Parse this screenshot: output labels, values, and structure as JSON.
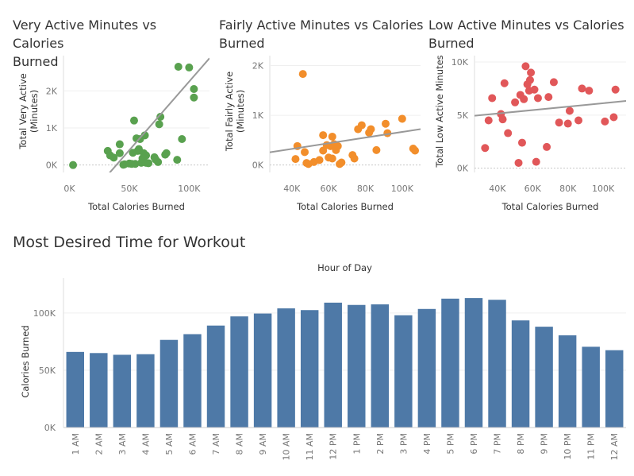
{
  "titles": {
    "very_active": [
      "Very Active Minutes vs Calories",
      "Burned"
    ],
    "fairly_active": [
      "Fairly Active Minutes vs Calories",
      "Burned"
    ],
    "low_active": [
      "Low Active Minutes vs Calories",
      "Burned"
    ],
    "workout": "Most Desired Time for Workout"
  },
  "colors": {
    "very_active": "#59a14f",
    "fairly_active": "#f28e2b",
    "low_active": "#e15759",
    "bars": "#4e79a7",
    "trend": "#999999"
  },
  "chart_data": [
    {
      "type": "scatter",
      "title": "Very Active Minutes vs Calories Burned",
      "xlabel": "Total Calories Burned",
      "ylabel": "Total Very Active (Minutes)",
      "xticks": [
        "0K",
        "50K",
        "100K"
      ],
      "yticks": [
        "0K",
        "1K",
        "2K"
      ],
      "xlim": [
        -5000,
        117000
      ],
      "ylim": [
        -200,
        2950
      ],
      "trend_line": {
        "slope": 0.037,
        "intercept": -1450
      },
      "points": [
        [
          3000,
          0
        ],
        [
          32000,
          380
        ],
        [
          34000,
          260
        ],
        [
          37000,
          200
        ],
        [
          42000,
          560
        ],
        [
          42000,
          320
        ],
        [
          45000,
          10
        ],
        [
          46000,
          20
        ],
        [
          50000,
          40
        ],
        [
          52000,
          30
        ],
        [
          53000,
          330
        ],
        [
          54000,
          1200
        ],
        [
          55000,
          30
        ],
        [
          56000,
          720
        ],
        [
          57000,
          380
        ],
        [
          58000,
          430
        ],
        [
          59000,
          700
        ],
        [
          60000,
          60
        ],
        [
          61000,
          180
        ],
        [
          62000,
          320
        ],
        [
          63000,
          800
        ],
        [
          64000,
          260
        ],
        [
          64000,
          60
        ],
        [
          66000,
          50
        ],
        [
          71000,
          210
        ],
        [
          72000,
          150
        ],
        [
          74000,
          80
        ],
        [
          75000,
          1100
        ],
        [
          76000,
          1300
        ],
        [
          80000,
          280
        ],
        [
          81000,
          320
        ],
        [
          90000,
          140
        ],
        [
          91000,
          2650
        ],
        [
          94000,
          700
        ],
        [
          100000,
          2630
        ],
        [
          104000,
          2050
        ],
        [
          104000,
          1820
        ]
      ]
    },
    {
      "type": "scatter",
      "title": "Fairly Active Minutes vs Calories Burned",
      "xlabel": "Total Calories Burned",
      "ylabel": "Total Fairly Active (Minutes)",
      "xticks": [
        "40K",
        "60K",
        "80K",
        "100K"
      ],
      "yticks": [
        "0K",
        "1K",
        "2K"
      ],
      "xlim": [
        28000,
        110000
      ],
      "ylim": [
        -150,
        2200
      ],
      "trend_line": {
        "slope": 0.0057,
        "intercept": 95
      },
      "points": [
        [
          42000,
          120
        ],
        [
          43000,
          380
        ],
        [
          46000,
          1830
        ],
        [
          47000,
          260
        ],
        [
          48000,
          40
        ],
        [
          49000,
          20
        ],
        [
          52000,
          60
        ],
        [
          55000,
          100
        ],
        [
          57000,
          290
        ],
        [
          57000,
          600
        ],
        [
          59000,
          400
        ],
        [
          60000,
          150
        ],
        [
          61000,
          380
        ],
        [
          62000,
          570
        ],
        [
          62000,
          130
        ],
        [
          63000,
          420
        ],
        [
          64000,
          300
        ],
        [
          65000,
          380
        ],
        [
          66000,
          20
        ],
        [
          67000,
          50
        ],
        [
          73000,
          200
        ],
        [
          74000,
          130
        ],
        [
          76000,
          720
        ],
        [
          78000,
          800
        ],
        [
          82000,
          650
        ],
        [
          83000,
          720
        ],
        [
          86000,
          300
        ],
        [
          91000,
          830
        ],
        [
          92000,
          640
        ],
        [
          100000,
          930
        ],
        [
          106000,
          330
        ],
        [
          107000,
          290
        ]
      ]
    },
    {
      "type": "scatter",
      "title": "Low Active Minutes vs Calories Burned",
      "xlabel": "Total Calories Burned",
      "ylabel": "Total Low Active Minutes",
      "xticks": [
        "40K",
        "60K",
        "80K",
        "100K"
      ],
      "yticks": [
        "0K",
        "5K",
        "10K"
      ],
      "xlim": [
        27000,
        113000
      ],
      "ylim": [
        -400,
        10600
      ],
      "trend_line": {
        "slope": 0.0162,
        "intercept": 4500
      },
      "points": [
        [
          33000,
          1900
        ],
        [
          35000,
          4500
        ],
        [
          37000,
          6600
        ],
        [
          42000,
          5100
        ],
        [
          43000,
          4600
        ],
        [
          44000,
          8000
        ],
        [
          46000,
          3300
        ],
        [
          50000,
          6200
        ],
        [
          52000,
          500
        ],
        [
          53000,
          6900
        ],
        [
          54000,
          2400
        ],
        [
          55000,
          6500
        ],
        [
          56000,
          9600
        ],
        [
          57000,
          7900
        ],
        [
          58000,
          7300
        ],
        [
          58500,
          8300
        ],
        [
          59000,
          9000
        ],
        [
          61000,
          7400
        ],
        [
          62000,
          600
        ],
        [
          63000,
          6600
        ],
        [
          68000,
          2000
        ],
        [
          69000,
          6700
        ],
        [
          72000,
          8100
        ],
        [
          75000,
          4300
        ],
        [
          80000,
          4200
        ],
        [
          81000,
          5400
        ],
        [
          86000,
          4500
        ],
        [
          88000,
          7500
        ],
        [
          92000,
          7300
        ],
        [
          101000,
          4400
        ],
        [
          106000,
          4800
        ],
        [
          107000,
          7400
        ]
      ]
    },
    {
      "type": "bar",
      "title": "Most Desired Time for Workout",
      "xlabel": "Hour of Day",
      "ylabel": "Calories Burned",
      "ylim": [
        0,
        120000
      ],
      "yticks": [
        "0K",
        "50K",
        "100K"
      ],
      "categories": [
        "1 AM",
        "2 AM",
        "3 AM",
        "4 AM",
        "5 AM",
        "6 AM",
        "7 AM",
        "8 AM",
        "9 AM",
        "10 AM",
        "11 AM",
        "12 PM",
        "1 PM",
        "2 PM",
        "3 PM",
        "4 PM",
        "5 PM",
        "6 PM",
        "7 PM",
        "8 PM",
        "9 PM",
        "10 PM",
        "11 PM",
        "12 AM"
      ],
      "values": [
        66000,
        65000,
        63500,
        64000,
        76500,
        81500,
        89000,
        97000,
        99500,
        104000,
        102500,
        109000,
        107000,
        107500,
        98000,
        103500,
        112500,
        113000,
        111500,
        93500,
        88000,
        80500,
        70500,
        67500
      ]
    }
  ]
}
